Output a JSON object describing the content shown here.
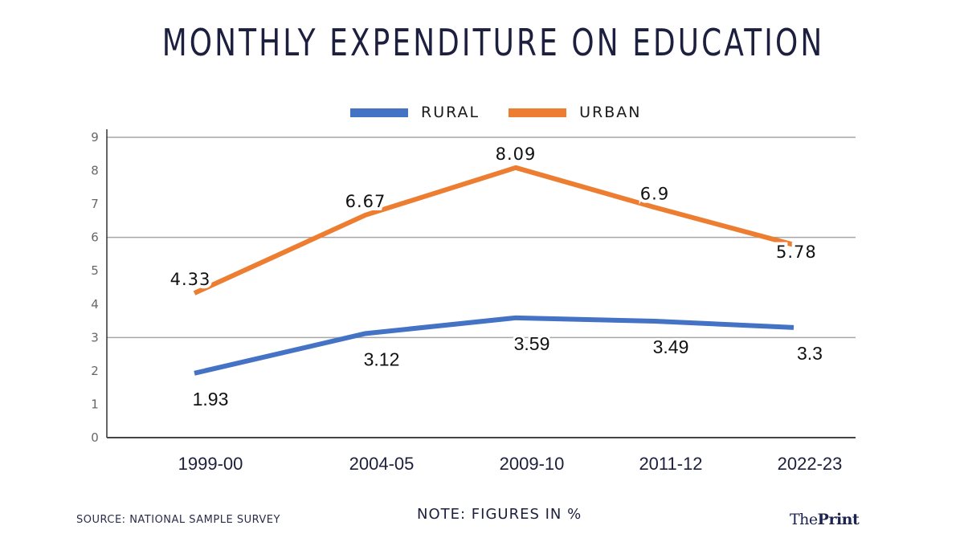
{
  "header": {
    "title": "MONTHLY EXPENDITURE ON EDUCATION"
  },
  "footer": {
    "source": "SOURCE: NATIONAL SAMPLE SURVEY",
    "note": "NOTE: FIGURES IN %",
    "brand_prefix": "The",
    "brand_suffix": "Print"
  },
  "chart_data": {
    "type": "line",
    "title": "MONTHLY EXPENDITURE ON EDUCATION",
    "xlabel": "",
    "ylabel": "",
    "categories": [
      "1999-00",
      "2004-05",
      "2009-10",
      "2011-12",
      "2022-23"
    ],
    "series": [
      {
        "name": "RURAL",
        "color": "#4472c4",
        "values": [
          1.93,
          3.12,
          3.59,
          3.49,
          3.3
        ],
        "labels": [
          "1.93",
          "3.12",
          "3.59",
          "3.49",
          "3.3"
        ]
      },
      {
        "name": "URBAN",
        "color": "#ed7d31",
        "values": [
          4.33,
          6.67,
          8.09,
          6.9,
          5.78
        ],
        "labels": [
          "4.33",
          "6.67",
          "8.09",
          "6.9",
          "5.78"
        ]
      }
    ],
    "ylim": [
      0,
      9
    ],
    "yticks": [
      "0",
      "1",
      "2",
      "3",
      "4",
      "5",
      "6",
      "7",
      "8",
      "9"
    ],
    "gridlines_at": [
      3,
      6,
      9
    ],
    "grid": true,
    "legend_position": "top-center",
    "note": "NOTE: FIGURES IN %",
    "source": "SOURCE: NATIONAL SAMPLE SURVEY"
  }
}
